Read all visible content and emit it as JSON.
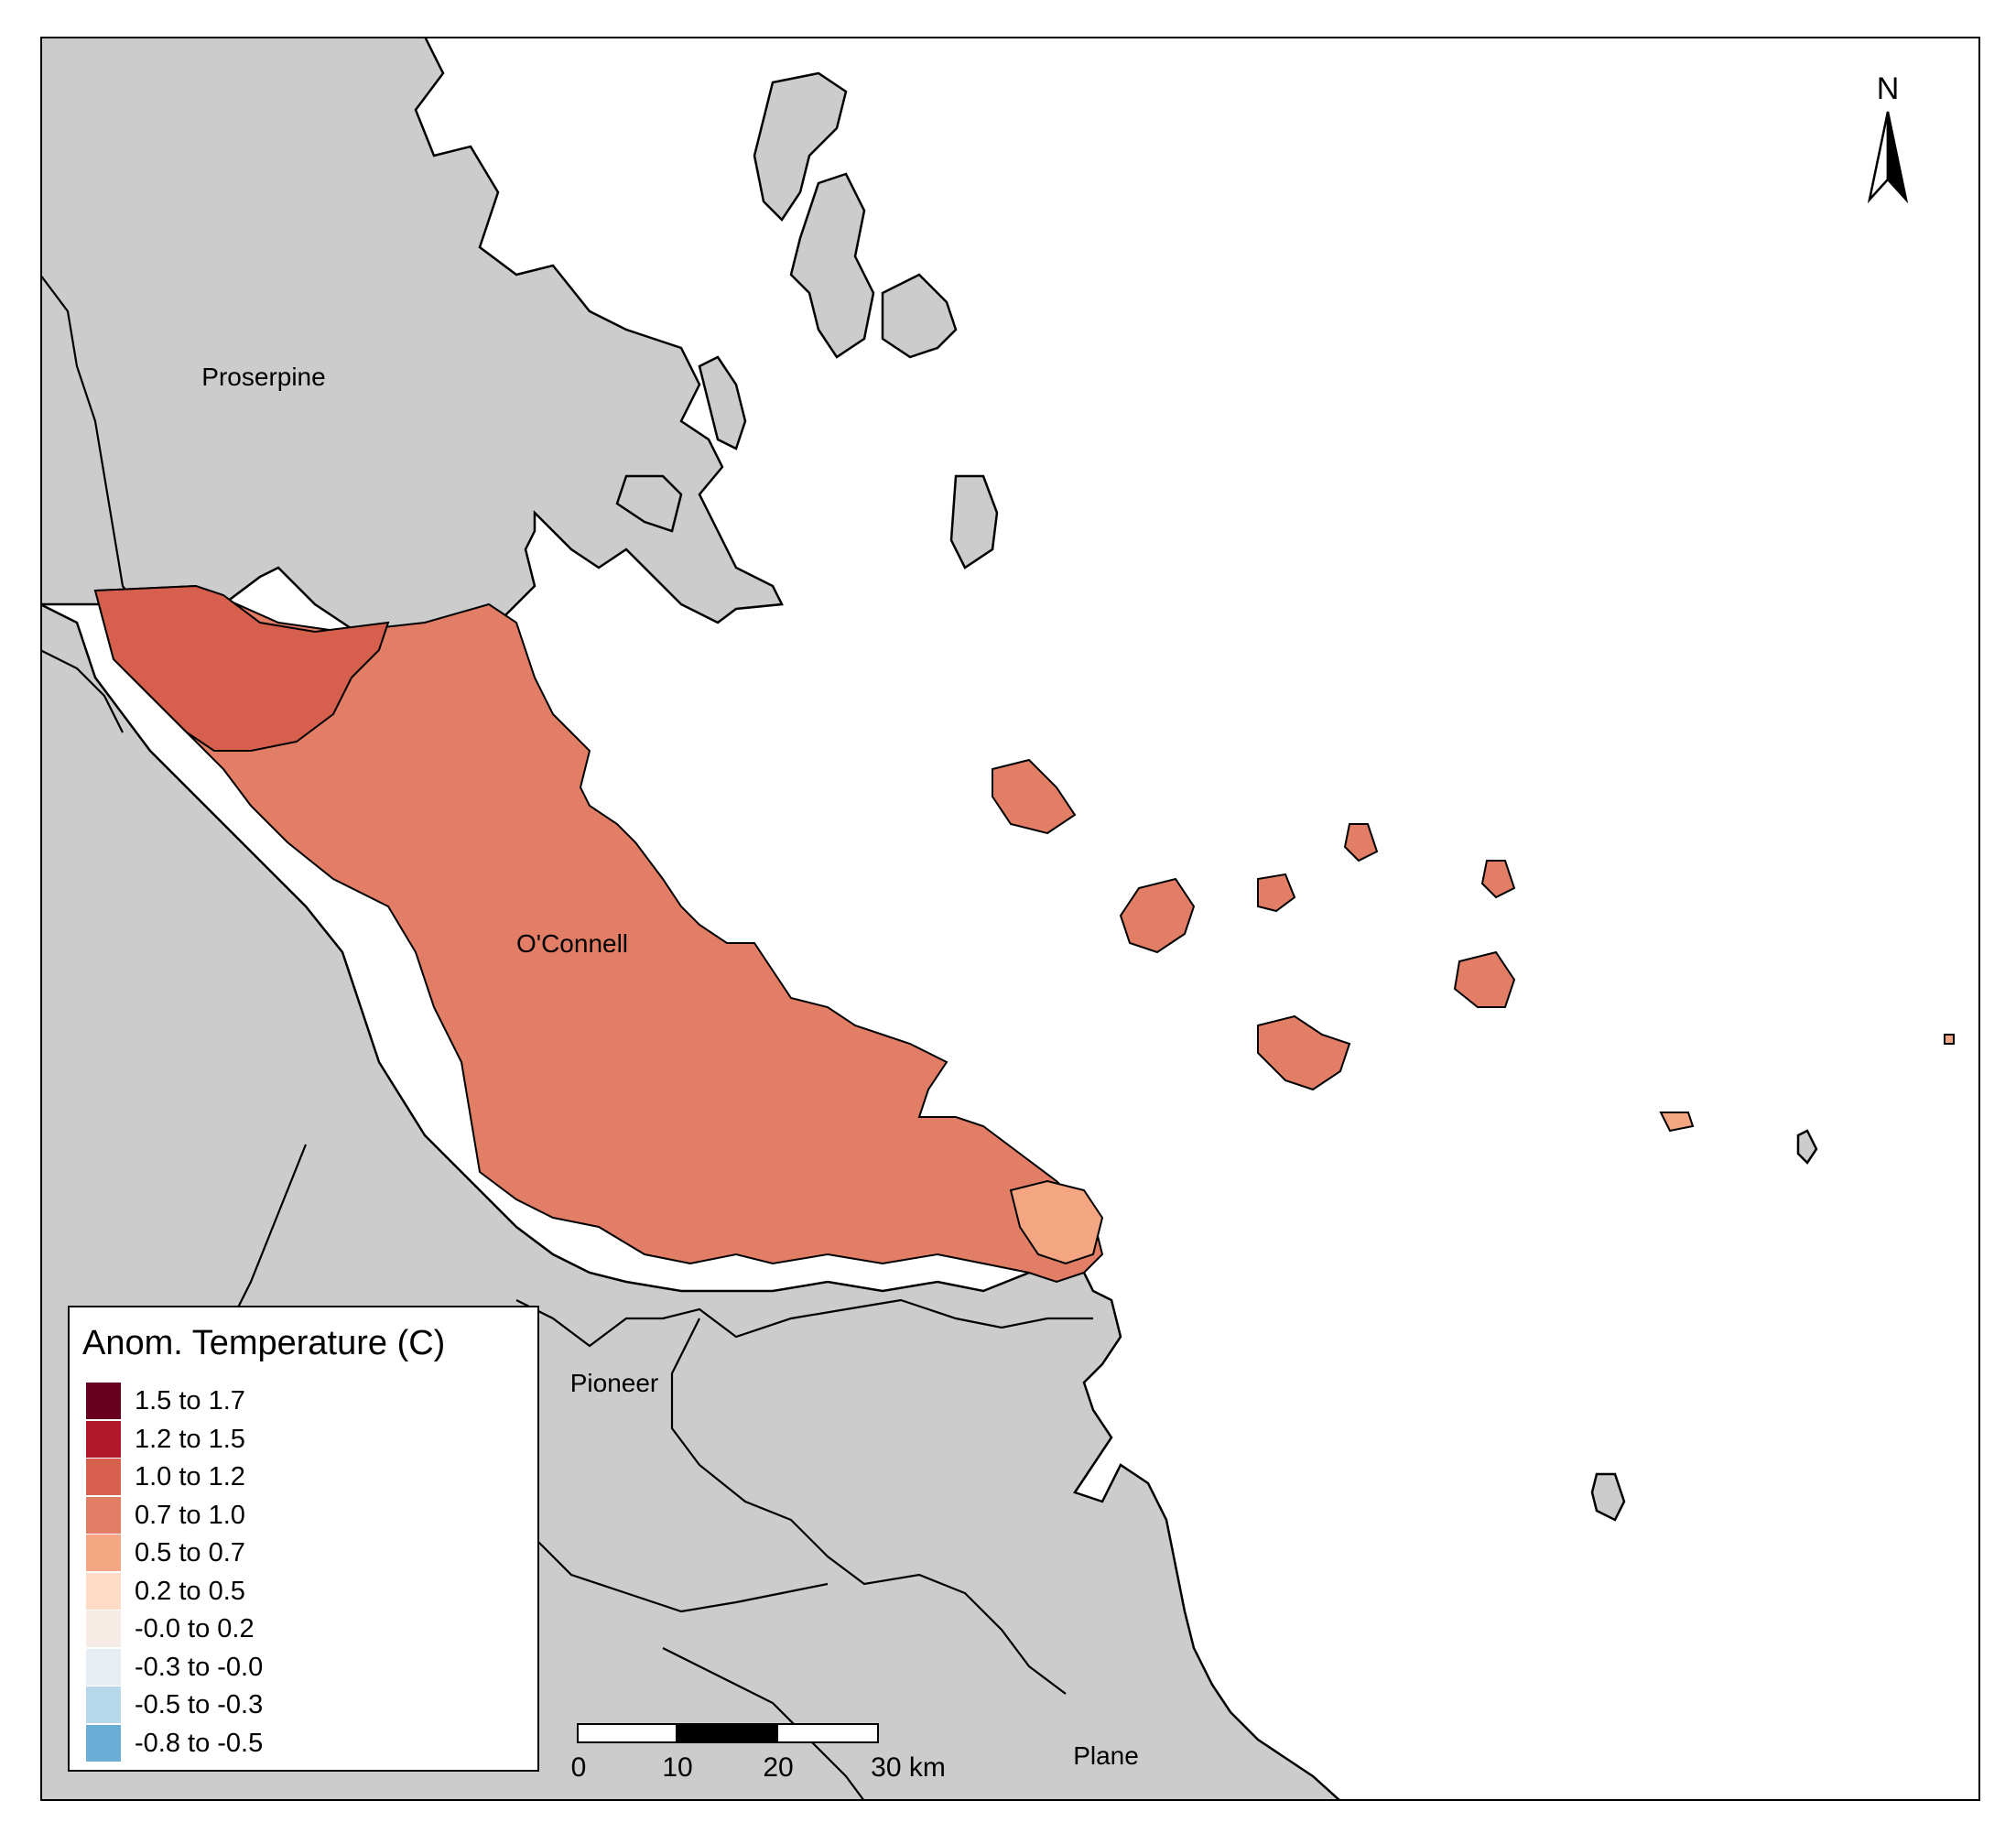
{
  "map": {
    "labels": {
      "proserpine": "Proserpine",
      "oconnell": "O'Connell",
      "pioneer": "Pioneer",
      "plane": "Plane"
    },
    "colors": {
      "land": "#cccccc",
      "sea": "#ffffff",
      "outline": "#000000",
      "anomaly_1_0_to_1_2": "#d6604d",
      "anomaly_0_7_to_1_0": "#e27d66",
      "anomaly_0_5_to_0_7": "#f4a582"
    }
  },
  "legend": {
    "title": "Anom. Temperature (C)",
    "items": [
      {
        "label": "1.5 to 1.7",
        "color": "#67001f"
      },
      {
        "label": "1.2 to 1.5",
        "color": "#b2182b"
      },
      {
        "label": "1.0 to 1.2",
        "color": "#d6604d"
      },
      {
        "label": "0.7 to 1.0",
        "color": "#e27d66"
      },
      {
        "label": "0.5 to 0.7",
        "color": "#f4a582"
      },
      {
        "label": "0.2 to 0.5",
        "color": "#fddbc7"
      },
      {
        "label": "-0.0 to 0.2",
        "color": "#f7ebe6"
      },
      {
        "label": "-0.3 to -0.0",
        "color": "#e6eef4"
      },
      {
        "label": "-0.5 to -0.3",
        "color": "#b7d8ea"
      },
      {
        "label": "-0.8 to -0.5",
        "color": "#6aaed6"
      }
    ]
  },
  "scalebar": {
    "ticks": [
      "0",
      "10",
      "20",
      "30 km"
    ]
  },
  "north_arrow": {
    "letter": "N"
  }
}
